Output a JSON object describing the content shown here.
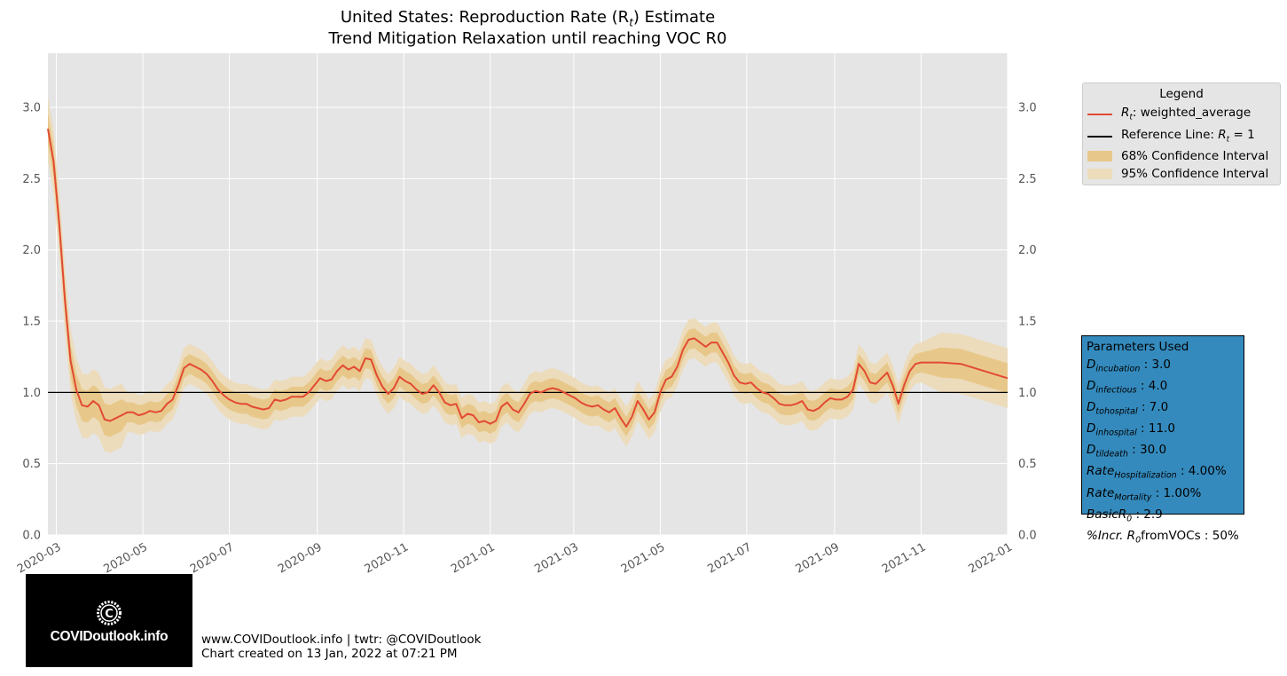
{
  "chart_data": {
    "type": "line",
    "title_line1": "United States: Reproduction Rate (R",
    "title_line1_sub": "t",
    "title_line1_end": ") Estimate",
    "title_line2": "Trend Mitigation Relaxation until reaching VOC R0",
    "xlabel": "",
    "ylabel": "",
    "ylim": [
      0,
      3.38
    ],
    "xlim": [
      "2020-02-24",
      "2022-01-01"
    ],
    "x_ticks": [
      "2020-03",
      "2020-05",
      "2020-07",
      "2020-09",
      "2020-11",
      "2021-01",
      "2021-03",
      "2021-05",
      "2021-07",
      "2021-09",
      "2021-11",
      "2022-01"
    ],
    "y_ticks": [
      "0.0",
      "0.5",
      "1.0",
      "1.5",
      "2.0",
      "2.5",
      "3.0"
    ],
    "grid": true,
    "reference_line": 1.0,
    "legend_position": "outside-right",
    "colors": {
      "line": "#e24a33",
      "ci68": "#e8c88a",
      "ci95": "#ecdcbc",
      "ref": "#000000",
      "panel": "#e5e5e5",
      "grid": "#ffffff",
      "params_box": "#348abd"
    },
    "series": [
      {
        "name": "weighted_average",
        "points": [
          [
            "2020-02-24",
            2.85
          ],
          [
            "2020-02-28",
            2.62
          ],
          [
            "2020-03-03",
            2.18
          ],
          [
            "2020-03-07",
            1.65
          ],
          [
            "2020-03-11",
            1.22
          ],
          [
            "2020-03-15",
            1.02
          ],
          [
            "2020-03-19",
            0.91
          ],
          [
            "2020-03-23",
            0.9
          ],
          [
            "2020-03-27",
            0.94
          ],
          [
            "2020-03-31",
            0.91
          ],
          [
            "2020-04-04",
            0.81
          ],
          [
            "2020-04-08",
            0.8
          ],
          [
            "2020-04-12",
            0.82
          ],
          [
            "2020-04-16",
            0.84
          ],
          [
            "2020-04-20",
            0.86
          ],
          [
            "2020-04-24",
            0.86
          ],
          [
            "2020-04-28",
            0.84
          ],
          [
            "2020-05-02",
            0.85
          ],
          [
            "2020-05-06",
            0.87
          ],
          [
            "2020-05-10",
            0.86
          ],
          [
            "2020-05-14",
            0.87
          ],
          [
            "2020-05-18",
            0.92
          ],
          [
            "2020-05-22",
            0.95
          ],
          [
            "2020-05-26",
            1.05
          ],
          [
            "2020-05-30",
            1.17
          ],
          [
            "2020-06-03",
            1.2
          ],
          [
            "2020-06-07",
            1.18
          ],
          [
            "2020-06-11",
            1.16
          ],
          [
            "2020-06-15",
            1.13
          ],
          [
            "2020-06-19",
            1.08
          ],
          [
            "2020-06-23",
            1.02
          ],
          [
            "2020-06-27",
            0.98
          ],
          [
            "2020-07-01",
            0.95
          ],
          [
            "2020-07-05",
            0.93
          ],
          [
            "2020-07-09",
            0.92
          ],
          [
            "2020-07-13",
            0.92
          ],
          [
            "2020-07-17",
            0.9
          ],
          [
            "2020-07-21",
            0.89
          ],
          [
            "2020-07-25",
            0.88
          ],
          [
            "2020-07-29",
            0.89
          ],
          [
            "2020-08-02",
            0.95
          ],
          [
            "2020-08-06",
            0.94
          ],
          [
            "2020-08-10",
            0.95
          ],
          [
            "2020-08-14",
            0.97
          ],
          [
            "2020-08-18",
            0.97
          ],
          [
            "2020-08-22",
            0.97
          ],
          [
            "2020-08-26",
            1.0
          ],
          [
            "2020-08-30",
            1.05
          ],
          [
            "2020-09-03",
            1.1
          ],
          [
            "2020-09-07",
            1.08
          ],
          [
            "2020-09-11",
            1.09
          ],
          [
            "2020-09-15",
            1.15
          ],
          [
            "2020-09-19",
            1.19
          ],
          [
            "2020-09-23",
            1.16
          ],
          [
            "2020-09-27",
            1.18
          ],
          [
            "2020-10-01",
            1.15
          ],
          [
            "2020-10-05",
            1.24
          ],
          [
            "2020-10-09",
            1.23
          ],
          [
            "2020-10-13",
            1.12
          ],
          [
            "2020-10-17",
            1.04
          ],
          [
            "2020-10-21",
            0.99
          ],
          [
            "2020-10-25",
            1.03
          ],
          [
            "2020-10-29",
            1.11
          ],
          [
            "2020-11-02",
            1.08
          ],
          [
            "2020-11-06",
            1.06
          ],
          [
            "2020-11-10",
            1.02
          ],
          [
            "2020-11-14",
            0.99
          ],
          [
            "2020-11-18",
            1.0
          ],
          [
            "2020-11-22",
            1.05
          ],
          [
            "2020-11-26",
            1.0
          ],
          [
            "2020-11-30",
            0.93
          ],
          [
            "2020-12-04",
            0.91
          ],
          [
            "2020-12-08",
            0.92
          ],
          [
            "2020-12-12",
            0.82
          ],
          [
            "2020-12-16",
            0.85
          ],
          [
            "2020-12-20",
            0.84
          ],
          [
            "2020-12-24",
            0.79
          ],
          [
            "2020-12-28",
            0.8
          ],
          [
            "2021-01-01",
            0.78
          ],
          [
            "2021-01-05",
            0.8
          ],
          [
            "2021-01-09",
            0.9
          ],
          [
            "2021-01-13",
            0.93
          ],
          [
            "2021-01-17",
            0.88
          ],
          [
            "2021-01-21",
            0.86
          ],
          [
            "2021-01-25",
            0.92
          ],
          [
            "2021-01-29",
            0.99
          ],
          [
            "2021-02-02",
            1.01
          ],
          [
            "2021-02-06",
            1.0
          ],
          [
            "2021-02-10",
            1.02
          ],
          [
            "2021-02-14",
            1.03
          ],
          [
            "2021-02-18",
            1.02
          ],
          [
            "2021-02-22",
            1.0
          ],
          [
            "2021-02-26",
            0.98
          ],
          [
            "2021-03-02",
            0.96
          ],
          [
            "2021-03-06",
            0.93
          ],
          [
            "2021-03-10",
            0.91
          ],
          [
            "2021-03-14",
            0.9
          ],
          [
            "2021-03-18",
            0.91
          ],
          [
            "2021-03-22",
            0.88
          ],
          [
            "2021-03-26",
            0.86
          ],
          [
            "2021-03-30",
            0.89
          ],
          [
            "2021-04-03",
            0.82
          ],
          [
            "2021-04-07",
            0.76
          ],
          [
            "2021-04-11",
            0.83
          ],
          [
            "2021-04-15",
            0.94
          ],
          [
            "2021-04-19",
            0.88
          ],
          [
            "2021-04-23",
            0.81
          ],
          [
            "2021-04-27",
            0.86
          ],
          [
            "2021-05-01",
            1.0
          ],
          [
            "2021-05-05",
            1.09
          ],
          [
            "2021-05-09",
            1.11
          ],
          [
            "2021-05-13",
            1.18
          ],
          [
            "2021-05-17",
            1.3
          ],
          [
            "2021-05-21",
            1.37
          ],
          [
            "2021-05-25",
            1.38
          ],
          [
            "2021-05-29",
            1.35
          ],
          [
            "2021-06-02",
            1.32
          ],
          [
            "2021-06-06",
            1.35
          ],
          [
            "2021-06-10",
            1.35
          ],
          [
            "2021-06-14",
            1.28
          ],
          [
            "2021-06-18",
            1.21
          ],
          [
            "2021-06-22",
            1.12
          ],
          [
            "2021-06-26",
            1.07
          ],
          [
            "2021-06-30",
            1.06
          ],
          [
            "2021-07-04",
            1.07
          ],
          [
            "2021-07-08",
            1.03
          ],
          [
            "2021-07-12",
            1.0
          ],
          [
            "2021-07-16",
            0.99
          ],
          [
            "2021-07-20",
            0.96
          ],
          [
            "2021-07-24",
            0.92
          ],
          [
            "2021-07-28",
            0.91
          ],
          [
            "2021-08-01",
            0.91
          ],
          [
            "2021-08-05",
            0.92
          ],
          [
            "2021-08-09",
            0.94
          ],
          [
            "2021-08-13",
            0.88
          ],
          [
            "2021-08-17",
            0.87
          ],
          [
            "2021-08-21",
            0.89
          ],
          [
            "2021-08-25",
            0.93
          ],
          [
            "2021-08-29",
            0.96
          ],
          [
            "2021-09-02",
            0.95
          ],
          [
            "2021-09-06",
            0.95
          ],
          [
            "2021-09-10",
            0.97
          ],
          [
            "2021-09-14",
            1.02
          ],
          [
            "2021-09-18",
            1.2
          ],
          [
            "2021-09-22",
            1.15
          ],
          [
            "2021-09-26",
            1.07
          ],
          [
            "2021-09-30",
            1.06
          ],
          [
            "2021-10-04",
            1.1
          ],
          [
            "2021-10-08",
            1.14
          ],
          [
            "2021-10-12",
            1.05
          ],
          [
            "2021-10-16",
            0.92
          ],
          [
            "2021-10-20",
            1.05
          ],
          [
            "2021-10-24",
            1.15
          ],
          [
            "2021-10-28",
            1.2
          ],
          [
            "2021-11-01",
            1.21
          ],
          [
            "2021-11-15",
            1.21
          ],
          [
            "2021-11-29",
            1.2
          ],
          [
            "2022-01-01",
            1.1
          ]
        ]
      }
    ]
  },
  "legend": {
    "title": "Legend",
    "items": [
      {
        "label_pre": "R",
        "label_sub": "t",
        "label_post": ": weighted_average",
        "kind": "line",
        "color": "#e24a33"
      },
      {
        "label_pre": "Reference Line: ",
        "label_math": "R",
        "label_sub": "t",
        "label_post": " = 1",
        "kind": "line",
        "color": "#000000"
      },
      {
        "label": "68% Confidence Interval",
        "kind": "patch",
        "color": "#e8c88a"
      },
      {
        "label": "95% Confidence Interval",
        "kind": "patch",
        "color": "#ecdcbc"
      }
    ]
  },
  "parameters": {
    "title": "Parameters Used",
    "rows": [
      {
        "main": "D",
        "sub": "incubation",
        "value": " : 3.0"
      },
      {
        "main": "D",
        "sub": "infectious",
        "value": " : 4.0"
      },
      {
        "main": "D",
        "sub": "tohospital",
        "value": " : 7.0"
      },
      {
        "main": "D",
        "sub": "inhospital",
        "value": " : 11.0"
      },
      {
        "main": "D",
        "sub": "tildeath",
        "value": " : 30.0"
      },
      {
        "main": "Rate",
        "sub": "Hospitalization",
        "value": " : 4.00%"
      },
      {
        "main": "Rate",
        "sub": "Mortality",
        "value": " : 1.00%"
      },
      {
        "main": "BasicR",
        "sub": "0",
        "value": " : 2.9"
      },
      {
        "main": "%Incr. R",
        "sub": "0",
        "value": "fromVOCs : 50%"
      }
    ]
  },
  "logo": {
    "text": "COVIDoutlook.info",
    "icon": "covid-c-logo-icon"
  },
  "footer": {
    "line1": "www.COVIDoutlook.info | twtr: @COVIDoutlook",
    "line2": "Chart created on 13 Jan, 2022 at 07:21 PM"
  }
}
